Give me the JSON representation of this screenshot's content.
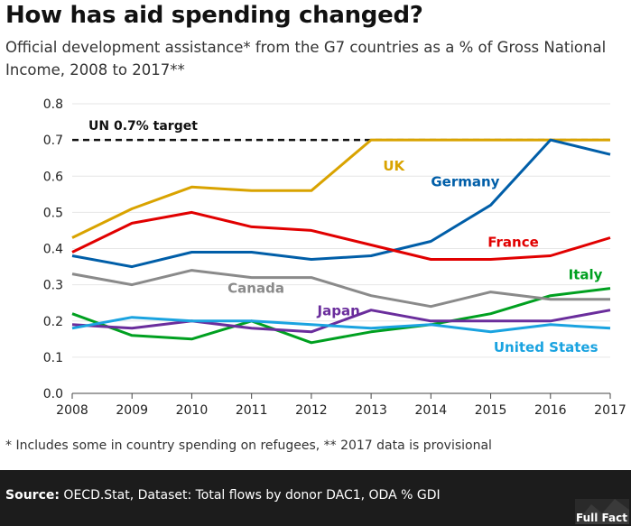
{
  "title": "How has aid spending changed?",
  "subtitle": "Official development assistance* from the G7 countries as a % of Gross National Income, 2008 to 2017**",
  "footnote": "* Includes some in country spending on refugees, ** 2017 data is provisional",
  "source": {
    "label": "Source:",
    "text": "OECD.Stat, Dataset: Total flows by donor DAC1, ODA % GDI"
  },
  "logo_text": "Full Fact",
  "chart_data": {
    "type": "line",
    "x": [
      2008,
      2009,
      2010,
      2011,
      2012,
      2013,
      2014,
      2015,
      2016,
      2017
    ],
    "ylim": [
      0,
      0.8
    ],
    "yticks": [
      0.0,
      0.1,
      0.2,
      0.3,
      0.4,
      0.5,
      0.6,
      0.7,
      0.8
    ],
    "ytick_labels": [
      "0.0",
      "0.1",
      "0.2",
      "0.3",
      "0.4",
      "0.5",
      "0.6",
      "0.7",
      "0.8"
    ],
    "xtick_labels": [
      "2008",
      "2009",
      "2010",
      "2011",
      "2012",
      "2013",
      "2014",
      "2015",
      "2016",
      "2017"
    ],
    "target": {
      "value": 0.7,
      "label": "UN 0.7% target"
    },
    "series": [
      {
        "name": "UK",
        "color": "#d9a300",
        "values": [
          0.43,
          0.51,
          0.57,
          0.56,
          0.56,
          0.7,
          0.7,
          0.7,
          0.7,
          0.7
        ]
      },
      {
        "name": "Germany",
        "color": "#005ea8",
        "values": [
          0.38,
          0.35,
          0.39,
          0.39,
          0.37,
          0.38,
          0.42,
          0.52,
          0.7,
          0.66
        ]
      },
      {
        "name": "France",
        "color": "#e10000",
        "values": [
          0.39,
          0.47,
          0.5,
          0.46,
          0.45,
          0.41,
          0.37,
          0.37,
          0.38,
          0.43
        ]
      },
      {
        "name": "Italy",
        "color": "#00a020",
        "values": [
          0.22,
          0.16,
          0.15,
          0.2,
          0.14,
          0.17,
          0.19,
          0.22,
          0.27,
          0.29
        ]
      },
      {
        "name": "Canada",
        "color": "#8a8a8a",
        "values": [
          0.33,
          0.3,
          0.34,
          0.32,
          0.32,
          0.27,
          0.24,
          0.28,
          0.26,
          0.26
        ]
      },
      {
        "name": "Japan",
        "color": "#6a2d9c",
        "values": [
          0.19,
          0.18,
          0.2,
          0.18,
          0.17,
          0.23,
          0.2,
          0.2,
          0.2,
          0.23
        ]
      },
      {
        "name": "United States",
        "color": "#1aa3e0",
        "values": [
          0.18,
          0.21,
          0.2,
          0.2,
          0.19,
          0.18,
          0.19,
          0.17,
          0.19,
          0.18
        ]
      }
    ]
  }
}
